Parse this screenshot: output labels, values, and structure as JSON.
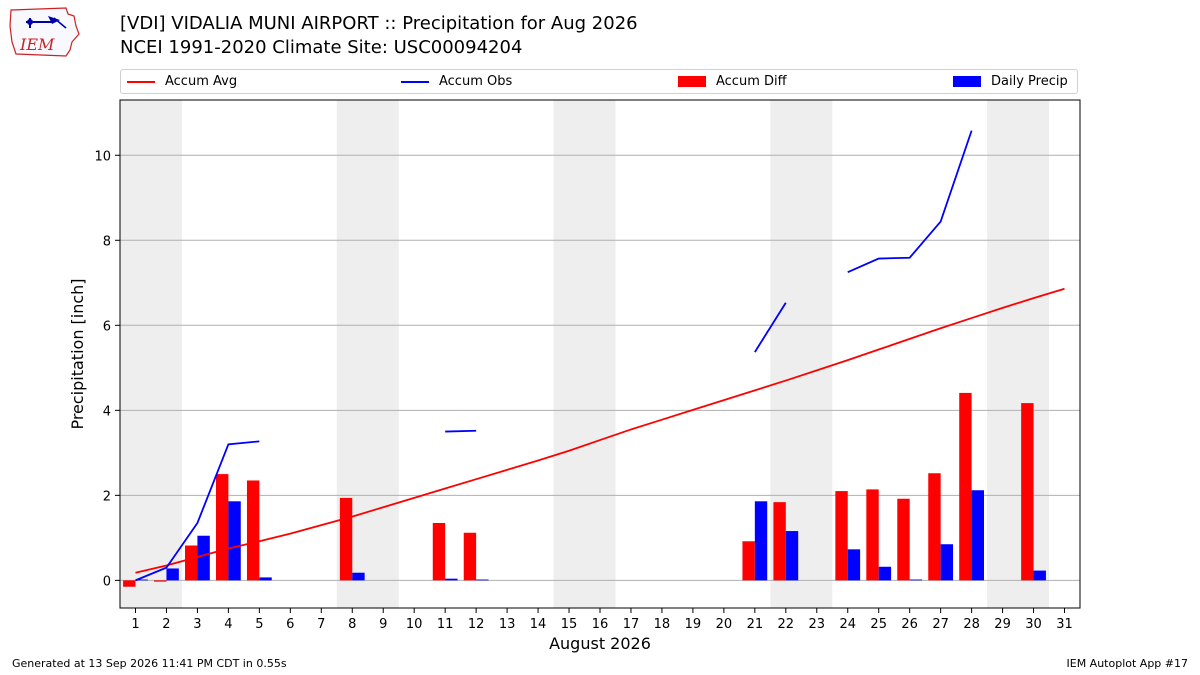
{
  "header": {
    "title_line1": "[VDI] VIDALIA MUNI AIRPORT :: Precipitation for Aug 2026",
    "title_line2": "NCEI 1991-2020 Climate Site: USC00094204",
    "logo_text": "IEM"
  },
  "colors": {
    "avg": "#ff0000",
    "obs": "#0000ff",
    "diff": "#ff0000",
    "daily": "#0000ff",
    "weekend_shade": "#eeeeee",
    "grid": "#b0b0b0"
  },
  "legend": {
    "items": [
      {
        "label": "Accum Avg",
        "kind": "line",
        "color": "#ff0000"
      },
      {
        "label": "Accum Obs",
        "kind": "line",
        "color": "#0000ff"
      },
      {
        "label": "Accum Diff",
        "kind": "box",
        "color": "#ff0000"
      },
      {
        "label": "Daily Precip",
        "kind": "box",
        "color": "#0000ff"
      }
    ]
  },
  "footer": {
    "left": "Generated at 13 Sep 2026 11:41 PM CDT in 0.55s",
    "right": "IEM Autoplot App #17"
  },
  "chart_data": {
    "type": "bar",
    "title": "[VDI] VIDALIA MUNI AIRPORT :: Precipitation for Aug 2026",
    "subtitle": "NCEI 1991-2020 Climate Site: USC00094204",
    "xlabel": "August 2026",
    "ylabel": "Precipitation [inch]",
    "x": [
      1,
      2,
      3,
      4,
      5,
      6,
      7,
      8,
      9,
      10,
      11,
      12,
      13,
      14,
      15,
      16,
      17,
      18,
      19,
      20,
      21,
      22,
      23,
      24,
      25,
      26,
      27,
      28,
      29,
      30,
      31
    ],
    "xlim": [
      0.5,
      31.5
    ],
    "ylim": [
      -0.65,
      11.3
    ],
    "yticks": [
      0,
      2,
      4,
      6,
      8,
      10
    ],
    "grid": "y",
    "legend_position": "top",
    "shaded_weekends": [
      [
        1,
        2
      ],
      [
        8,
        9
      ],
      [
        15,
        16
      ],
      [
        22,
        23
      ],
      [
        29,
        30
      ]
    ],
    "series": [
      {
        "name": "Accum Avg",
        "type": "line",
        "values": [
          0.18,
          0.35,
          0.55,
          0.75,
          0.92,
          1.1,
          1.3,
          1.5,
          1.72,
          1.94,
          2.16,
          2.38,
          2.6,
          2.82,
          3.05,
          3.3,
          3.55,
          3.78,
          4.01,
          4.24,
          4.47,
          4.7,
          4.94,
          5.18,
          5.43,
          5.68,
          5.93,
          6.17,
          6.41,
          6.64,
          6.86
        ]
      },
      {
        "name": "Accum Obs",
        "type": "line",
        "values": [
          0.0,
          0.3,
          1.35,
          3.2,
          3.27,
          null,
          null,
          null,
          null,
          null,
          3.5,
          3.52,
          null,
          null,
          null,
          null,
          null,
          null,
          null,
          null,
          5.37,
          6.53,
          null,
          7.25,
          7.57,
          7.59,
          8.44,
          10.58,
          null,
          null,
          null
        ]
      },
      {
        "name": "Accum Diff",
        "type": "bar",
        "values": [
          -0.15,
          -0.03,
          0.82,
          2.5,
          2.35,
          null,
          null,
          1.94,
          null,
          null,
          1.35,
          1.12,
          null,
          null,
          null,
          null,
          null,
          null,
          null,
          null,
          0.92,
          1.84,
          null,
          2.1,
          2.14,
          1.92,
          2.52,
          4.41,
          null,
          4.17,
          null
        ]
      },
      {
        "name": "Daily Precip",
        "type": "bar",
        "values": [
          0.02,
          0.28,
          1.05,
          1.86,
          0.07,
          null,
          null,
          0.18,
          null,
          null,
          0.04,
          0.02,
          null,
          null,
          null,
          null,
          null,
          null,
          null,
          null,
          1.86,
          1.16,
          null,
          0.73,
          0.32,
          0.02,
          0.85,
          2.12,
          null,
          0.23,
          null
        ]
      }
    ]
  }
}
